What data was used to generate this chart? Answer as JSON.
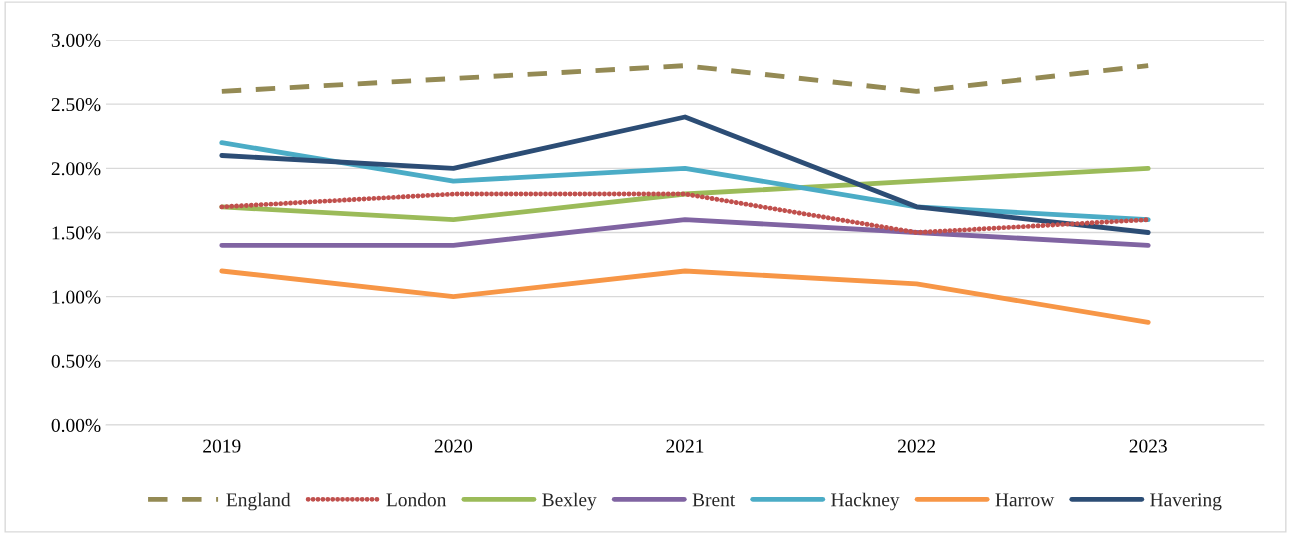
{
  "chart_data": {
    "type": "line",
    "categories": [
      "2019",
      "2020",
      "2021",
      "2022",
      "2023"
    ],
    "ylim": [
      0,
      3
    ],
    "yticks": [
      {
        "value": 0,
        "label": "0.00%"
      },
      {
        "value": 0.5,
        "label": "0.50%"
      },
      {
        "value": 1,
        "label": "1.00%"
      },
      {
        "value": 1.5,
        "label": "1.50%"
      },
      {
        "value": 2,
        "label": "2.00%"
      },
      {
        "value": 2.5,
        "label": "2.50%"
      },
      {
        "value": 3,
        "label": "3.00%"
      }
    ],
    "grid": "y",
    "legend": "bottom",
    "marker": "none",
    "series": [
      {
        "name": "England",
        "color": "#948a54",
        "line_style": "dashed",
        "values": [
          2.6,
          2.7,
          2.8,
          2.6,
          2.8
        ]
      },
      {
        "name": "London",
        "color": "#c0504d",
        "line_style": "dotted",
        "values": [
          1.7,
          1.8,
          1.8,
          1.5,
          1.6
        ]
      },
      {
        "name": "Bexley",
        "color": "#9bbb59",
        "line_style": "solid",
        "values": [
          1.7,
          1.6,
          1.8,
          1.9,
          2.0
        ]
      },
      {
        "name": "Brent",
        "color": "#8064a2",
        "line_style": "solid",
        "values": [
          1.4,
          1.4,
          1.6,
          1.5,
          1.4
        ]
      },
      {
        "name": "Hackney",
        "color": "#4bacc6",
        "line_style": "solid",
        "values": [
          2.2,
          1.9,
          2.0,
          1.7,
          1.6
        ]
      },
      {
        "name": "Harrow",
        "color": "#f79646",
        "line_style": "solid",
        "values": [
          1.2,
          1.0,
          1.2,
          1.1,
          0.8
        ]
      },
      {
        "name": "Havering",
        "color": "#2c4d75",
        "line_style": "solid",
        "values": [
          2.1,
          2.0,
          2.4,
          1.7,
          1.5
        ]
      }
    ]
  }
}
